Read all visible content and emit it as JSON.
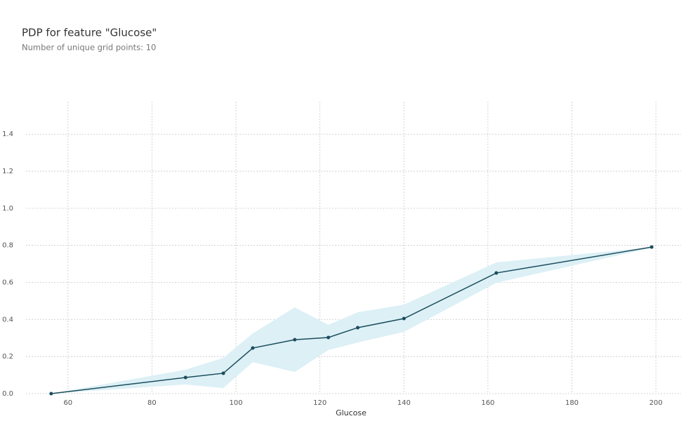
{
  "chart_data": {
    "type": "line",
    "title": "PDP for feature \"Glucose\"",
    "subtitle": "Number of unique grid points: 10",
    "x_label": "Glucose",
    "x": [
      56,
      88,
      97,
      104,
      114,
      122,
      129,
      140,
      162,
      199
    ],
    "values": [
      0.0,
      0.087,
      0.11,
      0.246,
      0.291,
      0.303,
      0.356,
      0.405,
      0.651,
      0.791
    ],
    "upper": [
      0.0,
      0.129,
      0.193,
      0.325,
      0.465,
      0.371,
      0.439,
      0.48,
      0.708,
      0.79
    ],
    "lower": [
      0.0,
      0.049,
      0.03,
      0.17,
      0.117,
      0.235,
      0.276,
      0.333,
      0.598,
      0.787
    ],
    "color": "#1b4d5c",
    "band_color": "#dcf0f6",
    "xlim": [
      50,
      206
    ],
    "ylim": [
      0,
      1.575
    ],
    "xticks": [
      60,
      80,
      100,
      120,
      140,
      160,
      180,
      200
    ],
    "yticks": [
      {
        "value": 0,
        "label": "0.0"
      },
      {
        "value": 0.2,
        "label": "0.2"
      },
      {
        "value": 0.4,
        "label": "0.4"
      },
      {
        "value": 0.6,
        "label": "0.6"
      },
      {
        "value": 0.8,
        "label": "0.8"
      },
      {
        "value": 1.0,
        "label": "1.0"
      },
      {
        "value": 1.2,
        "label": "1.2"
      },
      {
        "value": 1.4,
        "label": "1.4"
      }
    ],
    "grid": true
  }
}
